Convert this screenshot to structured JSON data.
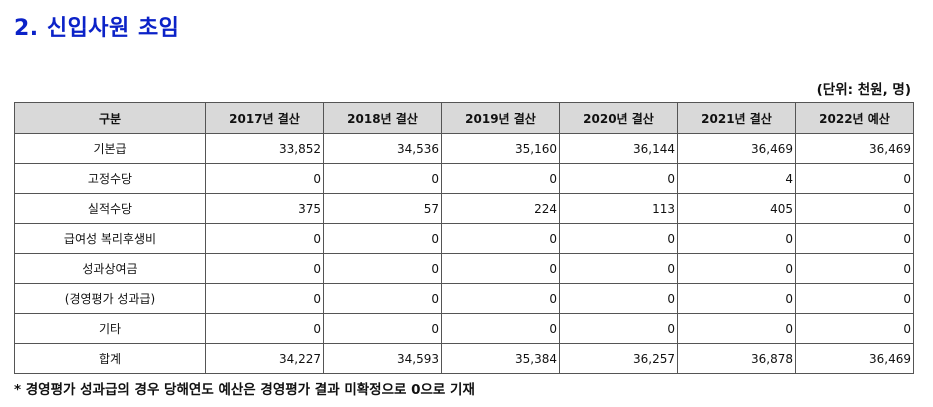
{
  "title": "2. 신입사원 초임",
  "unit": "(단위: 천원, 명)",
  "table": {
    "headers": [
      "구분",
      "2017년 결산",
      "2018년 결산",
      "2019년 결산",
      "2020년 결산",
      "2021년 결산",
      "2022년 예산"
    ],
    "rows": [
      {
        "label": "기본급",
        "values": [
          "33,852",
          "34,536",
          "35,160",
          "36,144",
          "36,469",
          "36,469"
        ]
      },
      {
        "label": "고정수당",
        "values": [
          "0",
          "0",
          "0",
          "0",
          "4",
          "0"
        ]
      },
      {
        "label": "실적수당",
        "values": [
          "375",
          "57",
          "224",
          "113",
          "405",
          "0"
        ]
      },
      {
        "label": "급여성 복리후생비",
        "values": [
          "0",
          "0",
          "0",
          "0",
          "0",
          "0"
        ]
      },
      {
        "label": "성과상여금",
        "values": [
          "0",
          "0",
          "0",
          "0",
          "0",
          "0"
        ]
      },
      {
        "label": "(경영평가 성과급)",
        "values": [
          "0",
          "0",
          "0",
          "0",
          "0",
          "0"
        ]
      },
      {
        "label": "기타",
        "values": [
          "0",
          "0",
          "0",
          "0",
          "0",
          "0"
        ]
      },
      {
        "label": "합계",
        "values": [
          "34,227",
          "34,593",
          "35,384",
          "36,257",
          "36,878",
          "36,469"
        ]
      }
    ]
  },
  "footnote": "* 경영평가 성과급의 경우 당해연도 예산은 경영평가 결과 미확정으로 0으로 기재"
}
